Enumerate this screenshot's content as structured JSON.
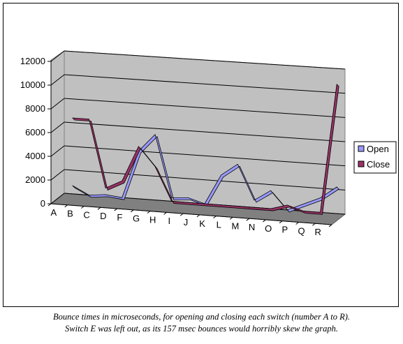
{
  "chart_data": {
    "type": "line",
    "style": "3d-line",
    "categories": [
      "A",
      "B",
      "C",
      "D",
      "F",
      "G",
      "H",
      "I",
      "J",
      "K",
      "L",
      "M",
      "N",
      "O",
      "P",
      "Q",
      "R"
    ],
    "series": [
      {
        "name": "Open",
        "color": "#9999ff",
        "values": [
          700,
          0,
          150,
          0,
          4000,
          5500,
          300,
          400,
          0,
          2500,
          3500,
          600,
          1500,
          0,
          600,
          1200,
          2200
        ]
      },
      {
        "name": "Close",
        "color": "#993366",
        "values": [
          6400,
          6400,
          700,
          1400,
          4400,
          2800,
          0,
          0,
          0,
          0,
          0,
          0,
          0,
          400,
          0,
          0,
          10700
        ]
      }
    ],
    "yticks": [
      0,
      2000,
      4000,
      6000,
      8000,
      10000,
      12000
    ],
    "ylim": [
      0,
      12000
    ],
    "grid": true,
    "legend": "right"
  },
  "caption": {
    "line1": "Bounce times in microseconds, for opening and closing each switch (number A to R).",
    "line2": "Switch E was left out, as its 157 msec bounces would horribly skew the graph."
  }
}
